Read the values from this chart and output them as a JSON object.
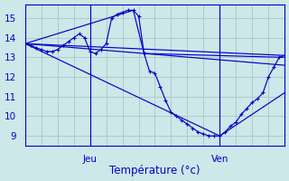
{
  "bg_color": "#cce8e8",
  "grid_color": "#aacccc",
  "line_color": "#0000cc",
  "xlabel": "Température (°c)",
  "ylim": [
    8.5,
    15.7
  ],
  "xlim": [
    0,
    48
  ],
  "yticks": [
    9,
    10,
    11,
    12,
    13,
    14,
    15
  ],
  "xticks_grid": [
    0,
    3,
    6,
    9,
    12,
    15,
    18,
    21,
    24,
    27,
    30,
    33,
    36,
    39,
    42,
    45,
    48
  ],
  "jeu_x": 12,
  "ven_x": 36,
  "main_series_x": [
    0,
    1,
    2,
    3,
    4,
    5,
    6,
    7,
    8,
    9,
    10,
    11,
    12,
    13,
    14,
    15,
    16,
    17,
    18,
    19,
    20,
    21,
    22,
    23,
    24,
    25,
    26,
    27,
    28,
    29,
    30,
    31,
    32,
    33,
    34,
    35,
    36,
    37,
    38,
    39,
    40,
    41,
    42,
    43,
    44,
    45,
    46,
    47,
    48
  ],
  "main_series_y": [
    13.7,
    13.6,
    13.5,
    13.4,
    13.3,
    13.3,
    13.4,
    13.6,
    13.8,
    14.0,
    14.2,
    14.0,
    13.3,
    13.2,
    13.4,
    13.7,
    15.0,
    15.2,
    15.3,
    15.4,
    15.4,
    15.1,
    13.2,
    12.3,
    12.2,
    11.5,
    10.8,
    10.2,
    10.0,
    9.8,
    9.6,
    9.4,
    9.2,
    9.1,
    9.0,
    9.0,
    9.0,
    9.2,
    9.5,
    9.7,
    10.1,
    10.4,
    10.7,
    10.9,
    11.2,
    12.0,
    12.5,
    13.0,
    13.1
  ],
  "line1": {
    "x": [
      0,
      48
    ],
    "y": [
      13.7,
      13.1
    ]
  },
  "line2": {
    "x": [
      0,
      20,
      22,
      48
    ],
    "y": [
      13.7,
      15.4,
      13.2,
      12.6
    ]
  },
  "line3": {
    "x": [
      0,
      22,
      48
    ],
    "y": [
      13.7,
      13.2,
      13.0
    ]
  },
  "line4": {
    "x": [
      0,
      36,
      48
    ],
    "y": [
      13.7,
      9.0,
      11.2
    ]
  }
}
